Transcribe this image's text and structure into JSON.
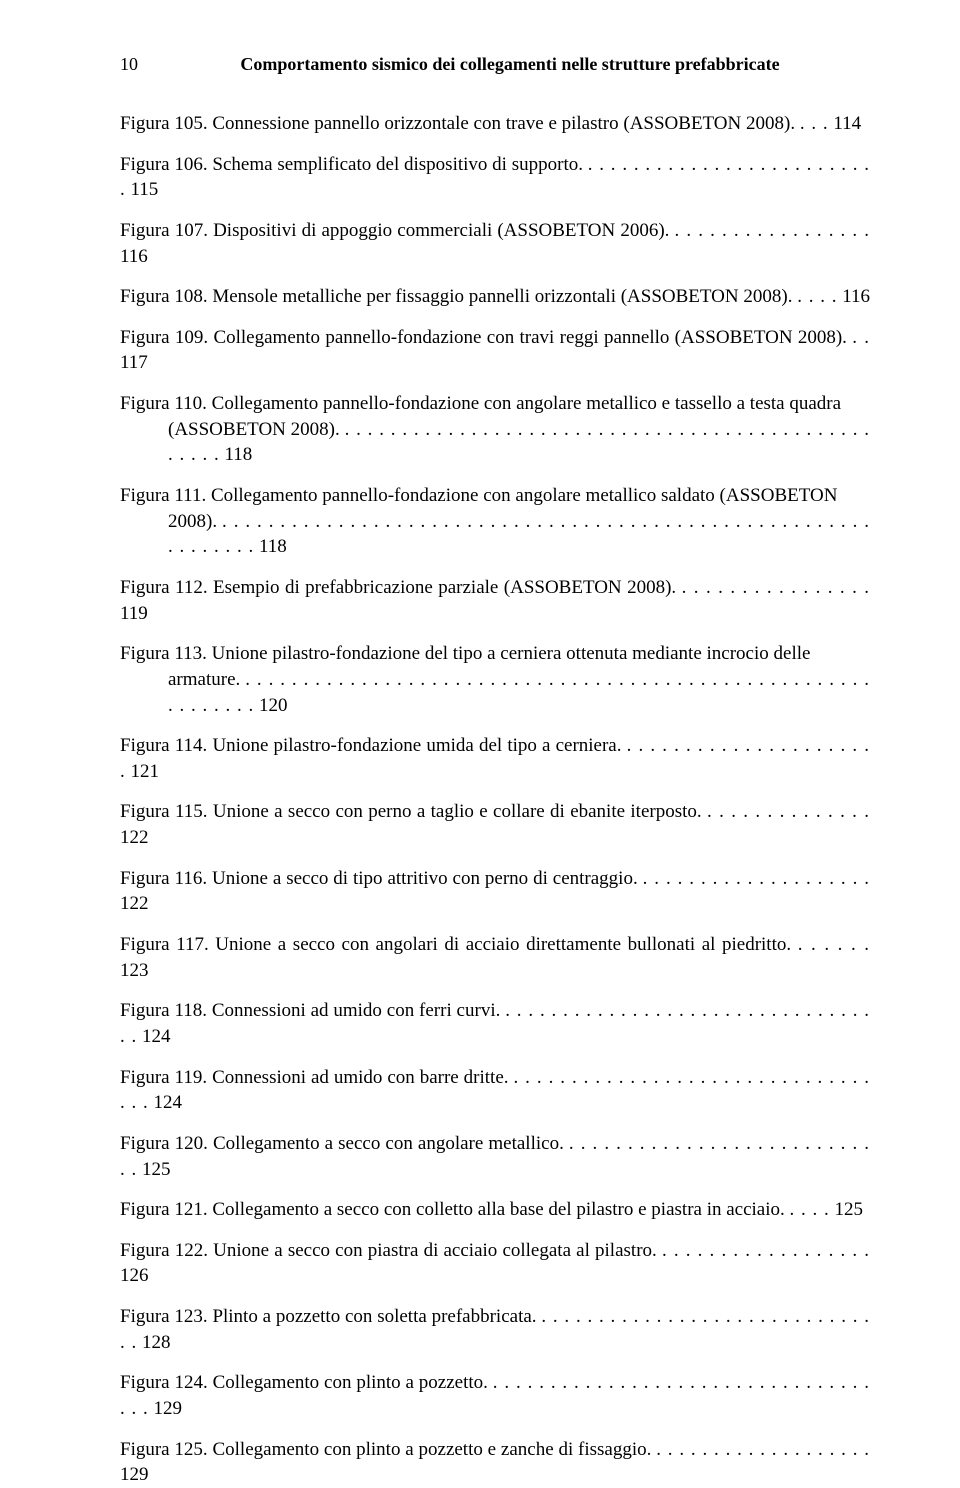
{
  "header": {
    "page_number": "10",
    "running_title": "Comportamento sismico dei collegamenti nelle strutture prefabbricate"
  },
  "font": {
    "body_size_pt": 14,
    "header_size_pt": 13,
    "color": "#000000",
    "background": "#ffffff",
    "family": "Times New Roman"
  },
  "entries": [
    {
      "label": "Figura 105.",
      "text": "Connessione pannello orizzontale con trave e pilastro (ASSOBETON 2008).",
      "page": "114",
      "multi": true
    },
    {
      "label": "Figura 106.",
      "text": "Schema semplificato del dispositivo di supporto.",
      "page": "115",
      "multi": false
    },
    {
      "label": "Figura 107.",
      "text": "Dispositivi di appoggio commerciali (ASSOBETON 2006).",
      "page": "116",
      "multi": false
    },
    {
      "label": "Figura 108.",
      "text": "Mensole metalliche per fissaggio pannelli orizzontali (ASSOBETON 2008).",
      "page": "116",
      "multi": true
    },
    {
      "label": "Figura 109.",
      "text": "Collegamento pannello-fondazione con travi reggi pannello (ASSOBETON 2008).",
      "page": "117",
      "multi": true
    },
    {
      "label": "Figura 110.",
      "text": "Collegamento pannello-fondazione con angolare metallico e tassello a testa quadra (ASSOBETON 2008).",
      "page": "118",
      "multi": true
    },
    {
      "label": "Figura 111.",
      "text": "Collegamento pannello-fondazione con angolare metallico saldato (ASSOBETON 2008).",
      "page": "118",
      "multi": true
    },
    {
      "label": "Figura 112.",
      "text": "Esempio di prefabbricazione parziale (ASSOBETON 2008).",
      "page": "119",
      "multi": false
    },
    {
      "label": "Figura 113.",
      "text": "Unione pilastro-fondazione del tipo a cerniera ottenuta mediante incrocio delle armature.",
      "page": "120",
      "multi": true
    },
    {
      "label": "Figura 114.",
      "text": "Unione pilastro-fondazione umida del tipo a cerniera.",
      "page": "121",
      "multi": false
    },
    {
      "label": "Figura 115.",
      "text": "Unione a secco con perno a taglio e collare di ebanite iterposto.",
      "page": "122",
      "multi": false
    },
    {
      "label": "Figura 116.",
      "text": "Unione a secco di tipo attritivo con perno di centraggio.",
      "page": "122",
      "multi": false
    },
    {
      "label": "Figura 117.",
      "text": "Unione a secco con angolari di acciaio direttamente bullonati al piedritto.",
      "page": "123",
      "multi": true
    },
    {
      "label": "Figura 118.",
      "text": "Connessioni ad umido con ferri curvi.",
      "page": "124",
      "multi": false
    },
    {
      "label": "Figura 119.",
      "text": "Connessioni ad umido con barre dritte.",
      "page": "124",
      "multi": false
    },
    {
      "label": "Figura 120.",
      "text": "Collegamento a secco con angolare metallico.",
      "page": "125",
      "multi": false
    },
    {
      "label": "Figura 121.",
      "text": "Collegamento a secco con colletto alla base del pilastro e piastra in acciaio.",
      "page": "125",
      "multi": true
    },
    {
      "label": "Figura 122.",
      "text": "Unione a secco con piastra di acciaio collegata al pilastro.",
      "page": "126",
      "multi": false
    },
    {
      "label": "Figura 123.",
      "text": "Plinto a pozzetto con soletta prefabbricata.",
      "page": "128",
      "multi": false
    },
    {
      "label": "Figura 124.",
      "text": "Collegamento con plinto a pozzetto.",
      "page": "129",
      "multi": false
    },
    {
      "label": "Figura 125.",
      "text": "Collegamento con plinto a pozzetto e zanche di fissaggio.",
      "page": "129",
      "multi": false
    }
  ]
}
